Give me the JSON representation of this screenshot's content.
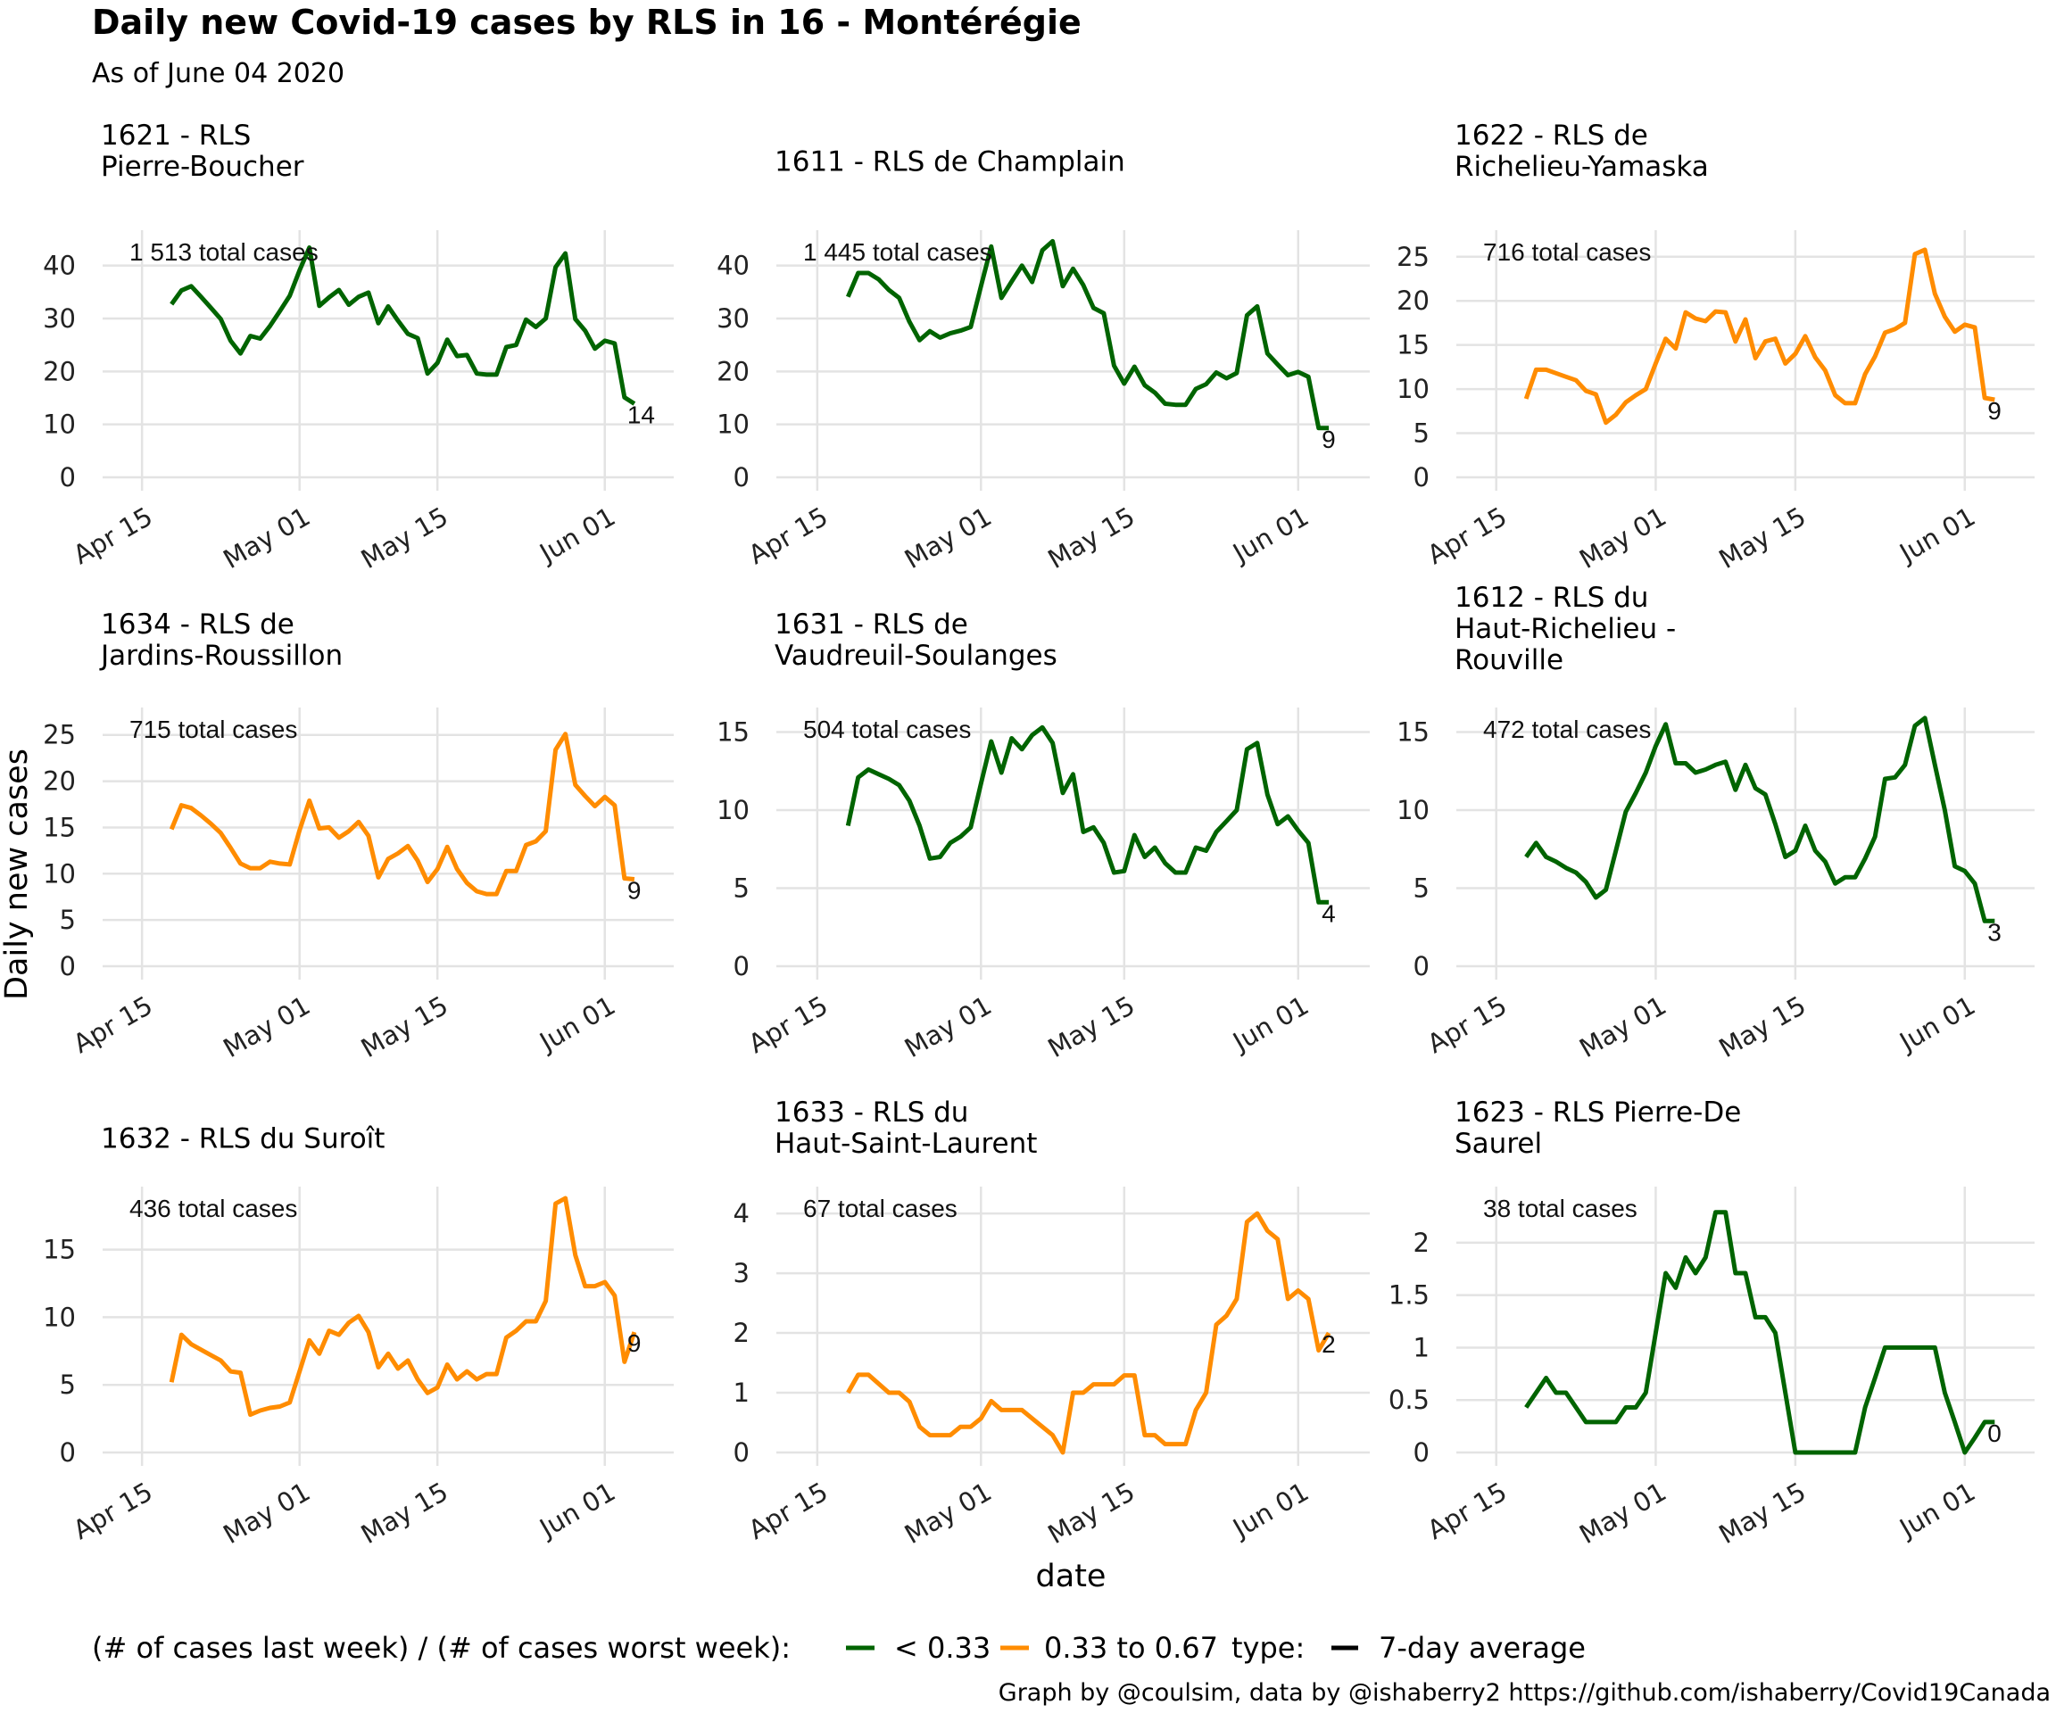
{
  "title": "Daily new Covid-19 cases by RLS in 16 - Montérégie",
  "subtitle": "As of June 04 2020",
  "xlabel": "date",
  "ylabel": "Daily new cases",
  "caption": "Graph by @coulsim, data by @ishaberry2 https://github.com/ishaberry/Covid19Canada",
  "colors": {
    "low": "#006400",
    "mid": "#FF8C00"
  },
  "legend": {
    "color_title": "(# of cases last week) / (# of cases worst week):",
    "low_label": "< 0.33",
    "mid_label": "0.33 to 0.67",
    "type_title": "type:",
    "type_label": "7-day average"
  },
  "chart_data": {
    "type": "line",
    "x_ticks": [
      "Apr 15",
      "May 01",
      "May 15",
      "Jun 01"
    ],
    "x_tick_dates": [
      "2020-04-15",
      "2020-05-01",
      "2020-05-15",
      "2020-06-01"
    ],
    "xlim": [
      "2020-04-11",
      "2020-06-08"
    ],
    "start_date": "2020-04-18",
    "panels": [
      {
        "title_lines": [
          "1621 - RLS",
          "Pierre-Boucher"
        ],
        "color_group": "low",
        "annotation": "1 513 total cases",
        "end_label": "14",
        "ylim": [
          0,
          45
        ],
        "y_ticks": [
          0,
          10,
          20,
          30,
          40
        ],
        "values": [
          32.7,
          35.3,
          36.1,
          34.1,
          32.0,
          29.9,
          25.8,
          23.4,
          26.7,
          26.2,
          28.6,
          31.4,
          34.3,
          39.1,
          43.4,
          32.4,
          34.0,
          35.4,
          32.6,
          34.1,
          34.9,
          29.1,
          32.3,
          29.6,
          27.1,
          26.3,
          19.6,
          21.6,
          26.0,
          22.9,
          23.1,
          19.6,
          19.4,
          19.4,
          24.6,
          25.0,
          29.8,
          28.4,
          30.0,
          39.7,
          42.3,
          29.9,
          27.7,
          24.3,
          25.8,
          25.3,
          15.1,
          13.9
        ]
      },
      {
        "title_lines": [
          "1611 - RLS de Champlain"
        ],
        "color_group": "low",
        "annotation": "1 445 total cases",
        "end_label": "9",
        "ylim": [
          0,
          45
        ],
        "y_ticks": [
          0,
          10,
          20,
          30,
          40
        ],
        "values": [
          34.1,
          38.6,
          38.6,
          37.4,
          35.4,
          33.9,
          29.4,
          25.9,
          27.6,
          26.4,
          27.2,
          27.7,
          28.4,
          36.1,
          43.6,
          33.9,
          37.0,
          40.0,
          36.9,
          42.9,
          44.6,
          36.1,
          39.4,
          36.3,
          32.0,
          31.0,
          21.1,
          17.7,
          20.9,
          17.4,
          16.0,
          13.9,
          13.7,
          13.7,
          16.7,
          17.6,
          19.8,
          18.7,
          19.7,
          30.6,
          32.3,
          23.4,
          21.3,
          19.3,
          19.9,
          19.0,
          9.3,
          9.3
        ]
      },
      {
        "title_lines": [
          "1622 - RLS de",
          "Richelieu-Yamaska"
        ],
        "color_group": "mid",
        "annotation": "716 total cases",
        "end_label": "9",
        "ylim": [
          0,
          27
        ],
        "y_ticks": [
          0,
          5,
          10,
          15,
          20,
          25
        ],
        "values": [
          8.9,
          12.2,
          12.2,
          11.8,
          11.4,
          11.0,
          9.8,
          9.4,
          6.2,
          7.1,
          8.5,
          9.3,
          10.0,
          12.9,
          15.7,
          14.6,
          18.7,
          18.0,
          17.7,
          18.8,
          18.7,
          15.4,
          17.9,
          13.5,
          15.4,
          15.7,
          12.9,
          14.0,
          16.0,
          13.6,
          12.1,
          9.3,
          8.4,
          8.4,
          11.7,
          13.7,
          16.4,
          16.8,
          17.5,
          25.3,
          25.8,
          20.8,
          18.2,
          16.5,
          17.3,
          17.0,
          9.0,
          8.8
        ]
      },
      {
        "title_lines": [
          "1634 - RLS de",
          "Jardins-Roussillon"
        ],
        "color_group": "mid",
        "annotation": "715 total cases",
        "end_label": "9",
        "ylim": [
          0,
          27
        ],
        "y_ticks": [
          0,
          5,
          10,
          15,
          20,
          25
        ],
        "values": [
          14.8,
          17.4,
          17.1,
          16.3,
          15.4,
          14.4,
          12.8,
          11.1,
          10.6,
          10.6,
          11.3,
          11.1,
          11.0,
          14.7,
          17.9,
          14.9,
          15.0,
          13.9,
          14.6,
          15.6,
          14.1,
          9.6,
          11.6,
          12.2,
          13.0,
          11.4,
          9.1,
          10.5,
          12.9,
          10.5,
          9.0,
          8.1,
          7.8,
          7.8,
          10.3,
          10.3,
          13.1,
          13.5,
          14.6,
          23.4,
          25.1,
          19.6,
          18.4,
          17.3,
          18.3,
          17.4,
          9.5,
          9.4
        ]
      },
      {
        "title_lines": [
          "1631 - RLS de",
          "Vaudreuil-Soulanges"
        ],
        "color_group": "low",
        "annotation": "504 total cases",
        "end_label": "4",
        "ylim": [
          0,
          16
        ],
        "y_ticks": [
          0,
          5,
          10,
          15
        ],
        "values": [
          9.0,
          12.1,
          12.6,
          12.3,
          12.0,
          11.6,
          10.6,
          9.0,
          6.9,
          7.0,
          7.9,
          8.3,
          8.9,
          11.7,
          14.4,
          12.4,
          14.6,
          13.9,
          14.8,
          15.3,
          14.3,
          11.1,
          12.3,
          8.6,
          8.9,
          7.9,
          6.0,
          6.1,
          8.4,
          7.0,
          7.6,
          6.6,
          6.0,
          6.0,
          7.6,
          7.4,
          8.6,
          9.3,
          10.0,
          13.9,
          14.3,
          11.0,
          9.1,
          9.6,
          8.7,
          7.9,
          4.1,
          4.1
        ]
      },
      {
        "title_lines": [
          "1612 - RLS du",
          "Haut-Richelieu -",
          "Rouville"
        ],
        "color_group": "low",
        "annotation": "472 total cases",
        "end_label": "3",
        "ylim": [
          0,
          16
        ],
        "y_ticks": [
          0,
          5,
          10,
          15
        ],
        "values": [
          7.0,
          7.9,
          7.0,
          6.7,
          6.3,
          6.0,
          5.4,
          4.4,
          4.9,
          7.4,
          9.9,
          11.1,
          12.4,
          14.1,
          15.5,
          13.0,
          13.0,
          12.4,
          12.6,
          12.9,
          13.1,
          11.3,
          12.9,
          11.4,
          11.0,
          9.1,
          7.0,
          7.4,
          9.0,
          7.4,
          6.7,
          5.3,
          5.7,
          5.7,
          6.9,
          8.3,
          12.0,
          12.1,
          12.9,
          15.4,
          15.9,
          12.9,
          10.0,
          6.4,
          6.1,
          5.3,
          2.9,
          2.9
        ]
      },
      {
        "title_lines": [
          "1632 - RLS du Suroît"
        ],
        "color_group": "mid",
        "annotation": "436 total cases",
        "end_label": "9",
        "ylim": [
          0,
          19
        ],
        "y_ticks": [
          0,
          5,
          10,
          15
        ],
        "values": [
          5.2,
          8.7,
          8.0,
          7.6,
          7.2,
          6.8,
          6.0,
          5.9,
          2.8,
          3.1,
          3.3,
          3.4,
          3.7,
          6.0,
          8.3,
          7.3,
          9.0,
          8.7,
          9.6,
          10.1,
          8.9,
          6.3,
          7.3,
          6.2,
          6.8,
          5.4,
          4.4,
          4.8,
          6.5,
          5.4,
          6.0,
          5.4,
          5.8,
          5.8,
          8.5,
          9.0,
          9.7,
          9.7,
          11.2,
          18.4,
          18.8,
          14.6,
          12.3,
          12.3,
          12.6,
          11.6,
          6.7,
          8.9
        ]
      },
      {
        "title_lines": [
          "1633 - RLS du",
          "Haut-Saint-Laurent"
        ],
        "color_group": "mid",
        "annotation": "67 total cases",
        "end_label": "2",
        "ylim": [
          0,
          4.3
        ],
        "y_ticks": [
          0,
          1,
          2,
          3,
          4
        ],
        "values": [
          1.0,
          1.3,
          1.3,
          1.15,
          1.0,
          1.0,
          0.85,
          0.43,
          0.29,
          0.29,
          0.29,
          0.43,
          0.43,
          0.57,
          0.86,
          0.71,
          0.71,
          0.71,
          0.57,
          0.43,
          0.29,
          0.0,
          1.0,
          1.0,
          1.14,
          1.14,
          1.14,
          1.29,
          1.29,
          0.29,
          0.29,
          0.14,
          0.14,
          0.14,
          0.71,
          1.0,
          2.14,
          2.29,
          2.57,
          3.86,
          4.0,
          3.71,
          3.57,
          2.57,
          2.71,
          2.57,
          1.71,
          2.0
        ]
      },
      {
        "title_lines": [
          "1623 - RLS Pierre-De",
          "Saurel"
        ],
        "color_group": "low",
        "annotation": "38 total cases",
        "end_label": "0",
        "ylim": [
          0,
          2.45
        ],
        "y_ticks": [
          0.0,
          0.5,
          1.0,
          1.5,
          2.0
        ],
        "values": [
          0.43,
          0.57,
          0.71,
          0.57,
          0.57,
          0.43,
          0.29,
          0.29,
          0.29,
          0.29,
          0.43,
          0.43,
          0.57,
          1.14,
          1.71,
          1.57,
          1.86,
          1.71,
          1.86,
          2.29,
          2.29,
          1.71,
          1.71,
          1.29,
          1.29,
          1.14,
          0.57,
          0.0,
          0.0,
          0.0,
          0.0,
          0.0,
          0.0,
          0.0,
          0.43,
          0.71,
          1.0,
          1.0,
          1.0,
          1.0,
          1.0,
          1.0,
          0.57,
          0.29,
          0.0,
          0.14,
          0.29,
          0.29
        ]
      }
    ]
  }
}
